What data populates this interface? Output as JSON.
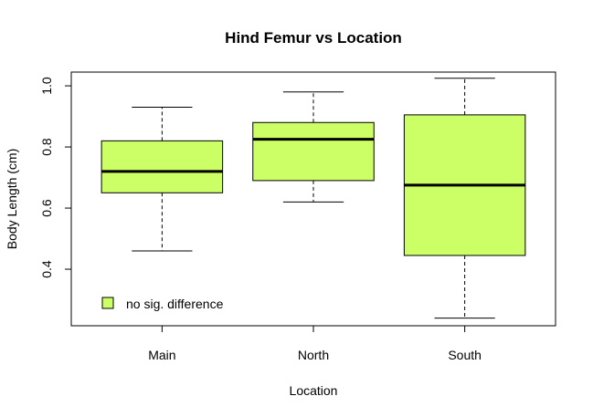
{
  "chart_data": {
    "type": "boxplot",
    "title": "Hind Femur vs Location",
    "xlabel": "Location",
    "ylabel": "Body Length (cm)",
    "categories": [
      "Main",
      "North",
      "South"
    ],
    "boxes": [
      {
        "category": "Main",
        "min": 0.46,
        "q1": 0.65,
        "median": 0.72,
        "q3": 0.82,
        "max": 0.93
      },
      {
        "category": "North",
        "min": 0.62,
        "q1": 0.69,
        "median": 0.825,
        "q3": 0.88,
        "max": 0.98
      },
      {
        "category": "South",
        "min": 0.24,
        "q1": 0.445,
        "median": 0.675,
        "q3": 0.905,
        "max": 1.025
      }
    ],
    "ylim": [
      0.215,
      1.045
    ],
    "yticks": [
      0.4,
      0.6,
      0.8,
      1.0
    ],
    "ytick_labels": [
      "0.4",
      "0.6",
      "0.8",
      "1.0"
    ],
    "box_color": "#CCFF66",
    "legend": {
      "position": "bottom-left",
      "entries": [
        {
          "label": "no sig. difference",
          "color": "#CCFF66"
        }
      ]
    },
    "grid": false
  }
}
